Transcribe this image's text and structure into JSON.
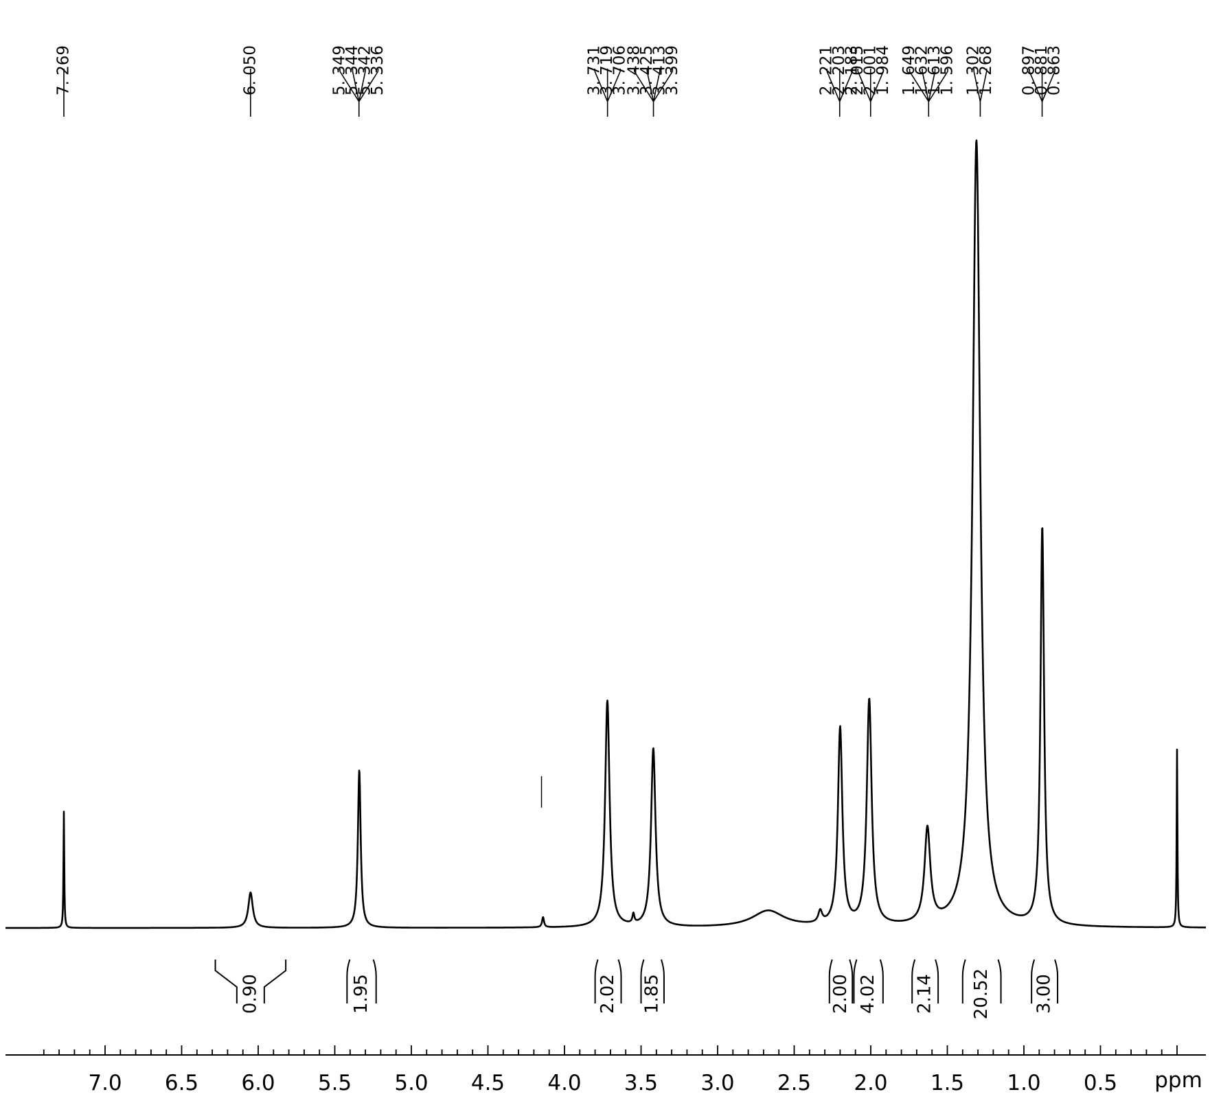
{
  "chart_data": {
    "type": "line",
    "title": "",
    "xlabel": "ppm",
    "ylabel": "",
    "xlim": [
      7.4,
      -0.05
    ],
    "x_reversed": true,
    "grid": false,
    "xticks": [
      "7.0",
      "6.5",
      "6.0",
      "5.5",
      "5.0",
      "4.5",
      "4.0",
      "3.5",
      "3.0",
      "2.5",
      "2.0",
      "1.5",
      "1.0",
      "0.5"
    ],
    "series": [
      {
        "peaks": [
          {
            "ppm": 7.269,
            "height": 0.148,
            "width": 0.006
          },
          {
            "ppm": 6.05,
            "height": 0.045,
            "width": 0.035
          },
          {
            "ppm": 5.34,
            "height": 0.201,
            "width": 0.022
          },
          {
            "ppm": 4.14,
            "height": 0.013,
            "width": 0.015
          },
          {
            "ppm": 3.72,
            "height": 0.288,
            "width": 0.035
          },
          {
            "ppm": 3.55,
            "height": 0.012,
            "width": 0.015
          },
          {
            "ppm": 3.42,
            "height": 0.227,
            "width": 0.035
          },
          {
            "ppm": 2.67,
            "height": 0.021,
            "width": 0.25
          },
          {
            "ppm": 2.33,
            "height": 0.015,
            "width": 0.03
          },
          {
            "ppm": 2.2,
            "height": 0.251,
            "width": 0.035
          },
          {
            "ppm": 2.01,
            "height": 0.287,
            "width": 0.038
          },
          {
            "ppm": 1.63,
            "height": 0.12,
            "width": 0.045
          },
          {
            "ppm": 1.31,
            "height": 1.0,
            "width": 0.06
          },
          {
            "ppm": 0.88,
            "height": 0.506,
            "width": 0.028
          },
          {
            "ppm": 0.0,
            "height": 0.226,
            "width": 0.006
          }
        ]
      }
    ],
    "extra_marks": [
      {
        "ppm": 4.15,
        "height_from": 0.153,
        "height_to": 0.193
      }
    ],
    "peak_labels": [
      {
        "ppm": 7.269,
        "labels": [
          "7. 269"
        ]
      },
      {
        "ppm": 6.05,
        "labels": [
          "6. 050"
        ]
      },
      {
        "ppm": 5.342,
        "labels": [
          "5. 349",
          "5. 344",
          "5. 342",
          "5. 336"
        ]
      },
      {
        "ppm": 3.719,
        "labels": [
          "3. 731",
          "3. 719",
          "3. 706"
        ]
      },
      {
        "ppm": 3.419,
        "labels": [
          "3. 438",
          "3. 425",
          "3. 413",
          "3. 399"
        ]
      },
      {
        "ppm": 2.203,
        "labels": [
          "2. 221",
          "2. 203",
          "2. 183"
        ]
      },
      {
        "ppm": 2.001,
        "labels": [
          "2. 015",
          "2. 001",
          "1. 984"
        ]
      },
      {
        "ppm": 1.622,
        "labels": [
          "1. 649",
          "1. 632",
          "1. 613",
          "1. 596"
        ]
      },
      {
        "ppm": 1.285,
        "labels": [
          "1. 302",
          "1. 268"
        ]
      },
      {
        "ppm": 0.881,
        "labels": [
          "0. 897",
          "0. 881",
          "0. 863"
        ]
      }
    ],
    "integrals": [
      {
        "from": 6.28,
        "to": 5.82,
        "value": "0.90",
        "style": "wide"
      },
      {
        "from": 5.42,
        "to": 5.23,
        "value": "1.95",
        "style": "bracket"
      },
      {
        "from": 3.8,
        "to": 3.63,
        "value": "2.02",
        "style": "bracket"
      },
      {
        "from": 3.5,
        "to": 3.35,
        "value": "1.85",
        "style": "bracket"
      },
      {
        "from": 2.27,
        "to": 2.12,
        "value": "2.00",
        "style": "bracket"
      },
      {
        "from": 2.11,
        "to": 1.92,
        "value": "4.02",
        "style": "bracket"
      },
      {
        "from": 1.73,
        "to": 1.56,
        "value": "2.14",
        "style": "bracket"
      },
      {
        "from": 1.4,
        "to": 1.15,
        "value": "20.52",
        "style": "bracket"
      },
      {
        "from": 0.95,
        "to": 0.78,
        "value": "3.00",
        "style": "bracket"
      }
    ]
  }
}
